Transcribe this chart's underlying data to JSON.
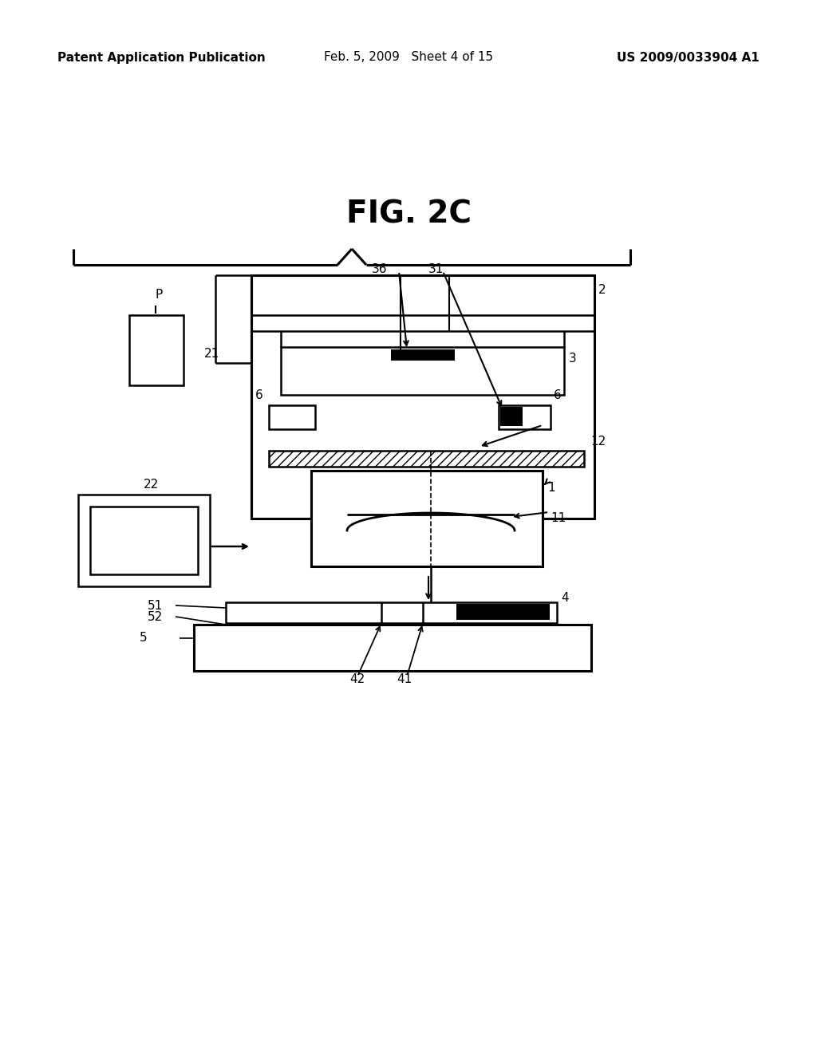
{
  "background_color": "#ffffff",
  "header_left": "Patent Application Publication",
  "header_mid": "Feb. 5, 2009   Sheet 4 of 15",
  "header_right": "US 2009/0033904 A1",
  "title": "FIG. 2C",
  "title_fontsize": 28,
  "header_fontsize": 11
}
